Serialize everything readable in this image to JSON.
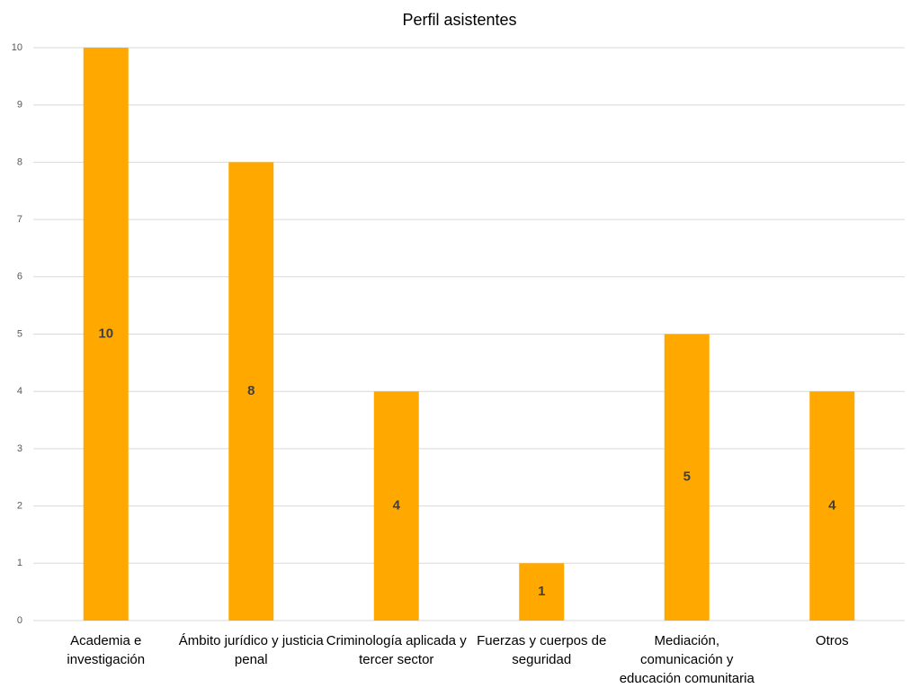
{
  "chart_data": {
    "type": "bar",
    "title": "Perfil asistentes",
    "categories": [
      "Academia e investigación",
      "Ámbito jurídico y justicia penal",
      "Criminología aplicada y tercer sector",
      "Fuerzas y cuerpos de seguridad",
      "Mediación, comunicación y educación comunitaria",
      "Otros"
    ],
    "values": [
      10,
      8,
      4,
      1,
      5,
      4
    ],
    "color": "#ffa800",
    "ylim": [
      0,
      10
    ],
    "yticks": [
      0,
      1,
      2,
      3,
      4,
      5,
      6,
      7,
      8,
      9,
      10
    ],
    "grid": true
  }
}
